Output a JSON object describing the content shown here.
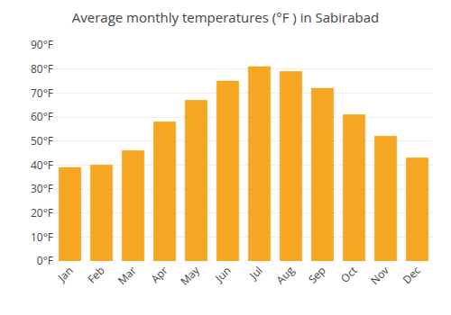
{
  "chart_data": {
    "type": "bar",
    "title": "Average monthly temperatures (°F ) in Sabirabad",
    "categories": [
      "Jan",
      "Feb",
      "Mar",
      "Apr",
      "May",
      "Jun",
      "Jul",
      "Aug",
      "Sep",
      "Oct",
      "Nov",
      "Dec"
    ],
    "values": [
      39,
      40,
      46,
      58,
      67,
      75,
      81,
      79,
      72,
      61,
      52,
      43
    ],
    "color": "#F5A623",
    "ylim": [
      0,
      90
    ],
    "yticks": [
      {
        "value": 0,
        "label": "0°F"
      },
      {
        "value": 10,
        "label": "10°F"
      },
      {
        "value": 20,
        "label": "20°F"
      },
      {
        "value": 30,
        "label": "30°F"
      },
      {
        "value": 40,
        "label": "40°F"
      },
      {
        "value": 50,
        "label": "50°F"
      },
      {
        "value": 60,
        "label": "60°F"
      },
      {
        "value": 70,
        "label": "70°F"
      },
      {
        "value": 80,
        "label": "80°F"
      },
      {
        "value": 90,
        "label": "90°F"
      }
    ],
    "grid": true
  }
}
